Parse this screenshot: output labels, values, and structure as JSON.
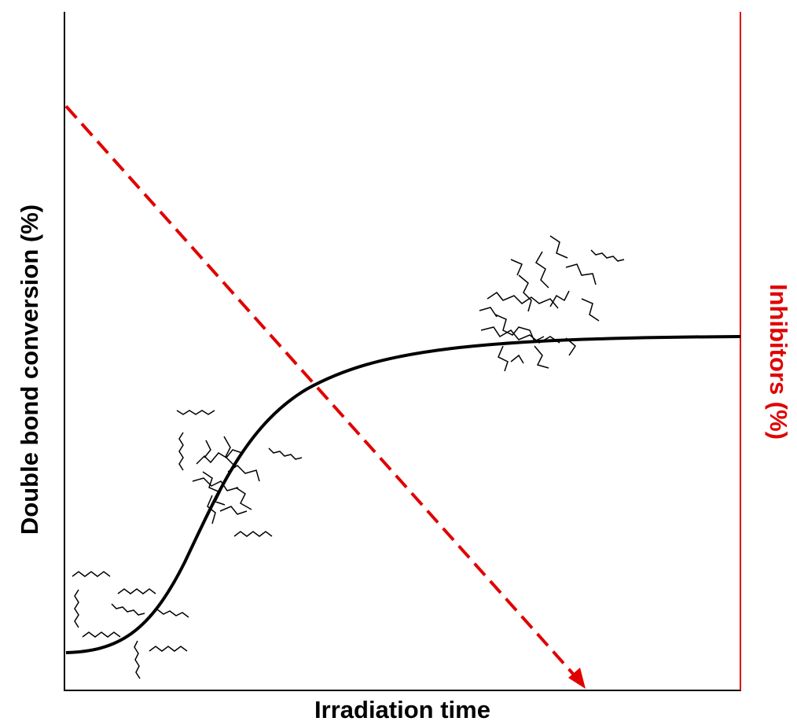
{
  "x_axis_label": "Irradiation time",
  "y_axis_label": "Double bond conversion (%)",
  "y2_axis_label": "Inhibitors (%)"
}
